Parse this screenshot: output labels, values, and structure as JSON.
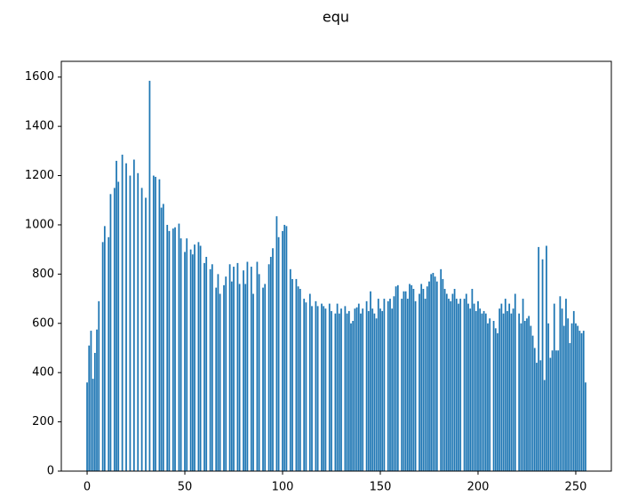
{
  "chart_data": {
    "type": "bar",
    "title": "equ",
    "x": [
      0,
      1,
      2,
      3,
      4,
      5,
      6,
      7,
      8,
      9,
      10,
      11,
      12,
      13,
      14,
      15,
      16,
      17,
      18,
      19,
      20,
      21,
      22,
      23,
      24,
      25,
      26,
      27,
      28,
      29,
      30,
      31,
      32,
      33,
      34,
      35,
      36,
      37,
      38,
      39,
      40,
      41,
      42,
      43,
      44,
      45,
      46,
      47,
      48,
      49,
      50,
      51,
      52,
      53,
      54,
      55,
      56,
      57,
      58,
      59,
      60,
      61,
      62,
      63,
      64,
      65,
      66,
      67,
      68,
      69,
      70,
      71,
      72,
      73,
      74,
      75,
      76,
      77,
      78,
      79,
      80,
      81,
      82,
      83,
      84,
      85,
      86,
      87,
      88,
      89,
      90,
      91,
      92,
      93,
      94,
      95,
      96,
      97,
      98,
      99,
      100,
      101,
      102,
      103,
      104,
      105,
      106,
      107,
      108,
      109,
      110,
      111,
      112,
      113,
      114,
      115,
      116,
      117,
      118,
      119,
      120,
      121,
      122,
      123,
      124,
      125,
      126,
      127,
      128,
      129,
      130,
      131,
      132,
      133,
      134,
      135,
      136,
      137,
      138,
      139,
      140,
      141,
      142,
      143,
      144,
      145,
      146,
      147,
      148,
      149,
      150,
      151,
      152,
      153,
      154,
      155,
      156,
      157,
      158,
      159,
      160,
      161,
      162,
      163,
      164,
      165,
      166,
      167,
      168,
      169,
      170,
      171,
      172,
      173,
      174,
      175,
      176,
      177,
      178,
      179,
      180,
      181,
      182,
      183,
      184,
      185,
      186,
      187,
      188,
      189,
      190,
      191,
      192,
      193,
      194,
      195,
      196,
      197,
      198,
      199,
      200,
      201,
      202,
      203,
      204,
      205,
      206,
      207,
      208,
      209,
      210,
      211,
      212,
      213,
      214,
      215,
      216,
      217,
      218,
      219,
      220,
      221,
      222,
      223,
      224,
      225,
      226,
      227,
      228,
      229,
      230,
      231,
      232,
      233,
      234,
      235,
      236,
      237,
      238,
      239,
      240,
      241,
      242,
      243,
      244,
      245,
      246,
      247,
      248,
      249,
      250,
      251,
      252,
      253,
      254,
      255
    ],
    "values": [
      360,
      510,
      570,
      375,
      480,
      575,
      690,
      0,
      930,
      995,
      0,
      950,
      1125,
      0,
      1150,
      1260,
      1175,
      0,
      1285,
      0,
      1250,
      0,
      1200,
      0,
      1265,
      0,
      1210,
      0,
      1150,
      0,
      1110,
      0,
      1585,
      0,
      1200,
      1195,
      0,
      1185,
      1070,
      1085,
      0,
      1000,
      975,
      0,
      985,
      990,
      0,
      1005,
      945,
      0,
      890,
      945,
      0,
      900,
      880,
      920,
      0,
      930,
      915,
      0,
      845,
      870,
      0,
      820,
      840,
      0,
      745,
      800,
      720,
      0,
      755,
      790,
      0,
      840,
      770,
      830,
      0,
      845,
      760,
      0,
      815,
      760,
      850,
      0,
      830,
      720,
      0,
      850,
      800,
      0,
      745,
      760,
      0,
      840,
      870,
      905,
      0,
      1035,
      950,
      0,
      975,
      1000,
      995,
      0,
      820,
      780,
      0,
      780,
      750,
      740,
      0,
      700,
      685,
      0,
      720,
      670,
      0,
      690,
      670,
      0,
      680,
      670,
      660,
      0,
      680,
      650,
      0,
      640,
      680,
      640,
      660,
      0,
      670,
      640,
      650,
      600,
      610,
      660,
      665,
      680,
      640,
      660,
      0,
      690,
      650,
      730,
      660,
      640,
      620,
      700,
      660,
      650,
      700,
      0,
      690,
      700,
      660,
      710,
      750,
      755,
      0,
      700,
      730,
      730,
      700,
      760,
      755,
      740,
      690,
      0,
      720,
      760,
      740,
      700,
      750,
      770,
      800,
      805,
      790,
      770,
      0,
      820,
      780,
      740,
      720,
      700,
      690,
      720,
      740,
      700,
      680,
      700,
      0,
      700,
      720,
      680,
      660,
      740,
      680,
      650,
      690,
      660,
      640,
      650,
      640,
      600,
      620,
      0,
      610,
      580,
      560,
      660,
      680,
      640,
      700,
      650,
      680,
      640,
      660,
      720,
      0,
      640,
      600,
      700,
      610,
      620,
      630,
      590,
      550,
      500,
      440,
      910,
      450,
      860,
      370,
      915,
      600,
      460,
      490,
      680,
      490,
      490,
      710,
      660,
      590,
      700,
      620,
      520,
      600,
      650,
      600,
      590,
      570,
      560,
      570,
      360
    ],
    "color": "#1f77b4",
    "xlim": [
      -13.2,
      268.2
    ],
    "xticks": [
      0,
      50,
      100,
      150,
      200,
      250
    ],
    "ylim": [
      0,
      1664
    ],
    "yticks": [
      0,
      200,
      400,
      600,
      800,
      1000,
      1200,
      1400,
      1600
    ]
  }
}
